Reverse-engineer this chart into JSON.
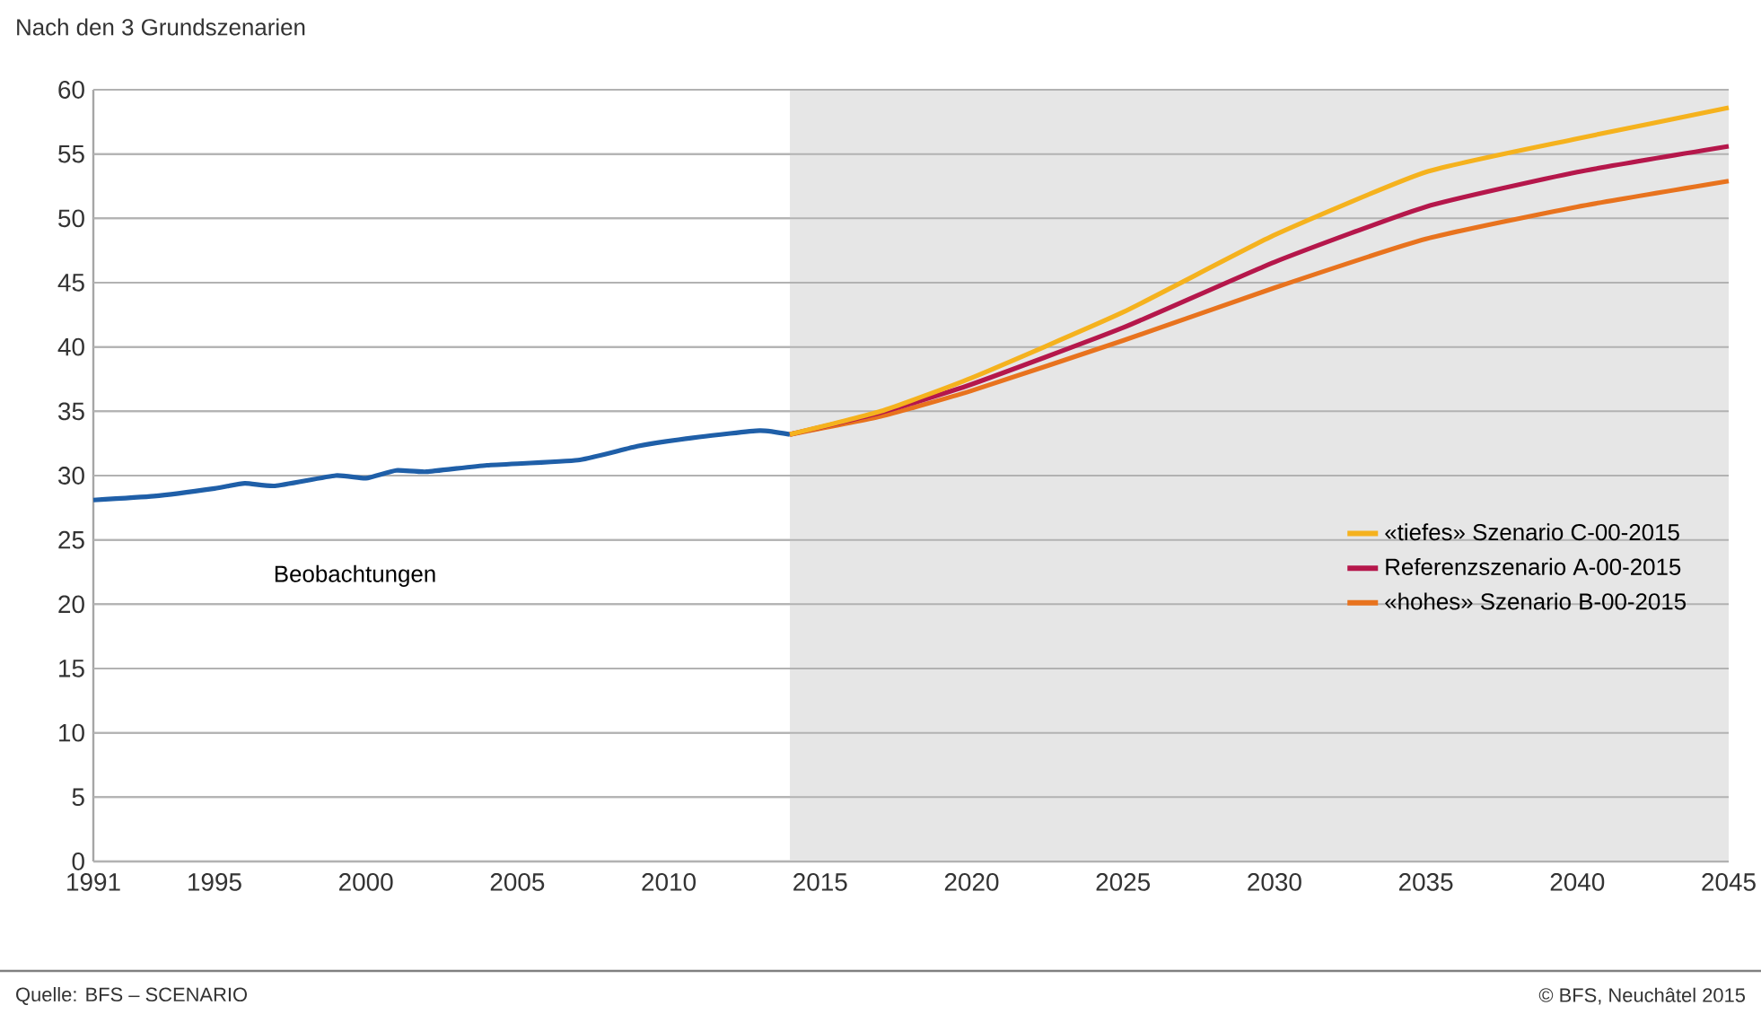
{
  "chart_data": {
    "type": "line",
    "title": "Nach den 3 Grundszenarien",
    "xlim": [
      1991,
      2045
    ],
    "xticks": [
      1991,
      1995,
      2000,
      2005,
      2010,
      2015,
      2020,
      2025,
      2030,
      2035,
      2040,
      2045
    ],
    "ylim": [
      0,
      60
    ],
    "yticks": [
      0,
      5,
      10,
      15,
      20,
      25,
      30,
      35,
      40,
      45,
      50,
      55,
      60
    ],
    "grid": "y",
    "legend": "right",
    "line_style": "solid",
    "marker": "none",
    "bands": [
      {
        "axis": "x",
        "from": 2014,
        "to": 2045,
        "color": "#e6e6e6"
      }
    ],
    "series": [
      {
        "color": "#1f5fa8",
        "x": [
          1991,
          1993,
          1995,
          1996,
          1997,
          1999,
          2000,
          2001,
          2002,
          2004,
          2007,
          2009,
          2011,
          2013,
          2014
        ],
        "values": [
          28.1,
          28.4,
          29.0,
          29.4,
          29.2,
          30.0,
          29.8,
          30.4,
          30.3,
          30.8,
          31.2,
          32.3,
          33.0,
          33.5,
          33.2
        ]
      },
      {
        "name": "«tiefes» Szenario C-00-2015",
        "color": "#f5b21e",
        "x": [
          2014,
          2017,
          2020,
          2025,
          2030,
          2035,
          2040,
          2045
        ],
        "values": [
          33.2,
          35.0,
          37.6,
          42.7,
          48.7,
          53.6,
          56.2,
          58.6
        ]
      },
      {
        "name": "Referenzszenario A-00-2015",
        "color": "#b5174b",
        "x": [
          2014,
          2017,
          2020,
          2025,
          2030,
          2035,
          2040,
          2045
        ],
        "values": [
          33.2,
          34.9,
          37.1,
          41.5,
          46.6,
          50.9,
          53.6,
          55.6
        ]
      },
      {
        "name": "«hohes» Szenario B-00-2015",
        "color": "#e8731e",
        "x": [
          2014,
          2017,
          2020,
          2025,
          2030,
          2035,
          2040,
          2045
        ],
        "values": [
          33.2,
          34.6,
          36.6,
          40.5,
          44.6,
          48.4,
          50.9,
          52.9
        ]
      }
    ],
    "annotations": [
      "Beobachtungen",
      "Quelle: BFS – SCENARIO",
      "© BFS, Neuchâtel 2015"
    ]
  }
}
